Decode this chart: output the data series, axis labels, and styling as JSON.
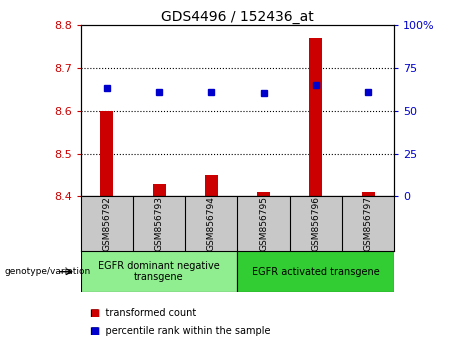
{
  "title": "GDS4496 / 152436_at",
  "samples": [
    "GSM856792",
    "GSM856793",
    "GSM856794",
    "GSM856795",
    "GSM856796",
    "GSM856797"
  ],
  "red_values": [
    8.6,
    8.43,
    8.45,
    8.41,
    8.77,
    8.41
  ],
  "blue_values": [
    63,
    61,
    61,
    60,
    65,
    61
  ],
  "ylim_left": [
    8.4,
    8.8
  ],
  "ylim_right": [
    0,
    100
  ],
  "yticks_left": [
    8.4,
    8.5,
    8.6,
    8.7,
    8.8
  ],
  "yticks_right": [
    0,
    25,
    50,
    75,
    100
  ],
  "group1_label": "EGFR dominant negative\ntransgene",
  "group2_label": "EGFR activated transgene",
  "group1_indices": [
    0,
    1,
    2
  ],
  "group2_indices": [
    3,
    4,
    5
  ],
  "group1_color": "#90EE90",
  "group2_color": "#32CD32",
  "red_color": "#CC0000",
  "blue_color": "#0000CC",
  "legend_red": "transformed count",
  "legend_blue": "percentile rank within the sample",
  "genotype_label": "genotype/variation",
  "bar_width": 0.25,
  "sample_box_color": "#C8C8C8"
}
